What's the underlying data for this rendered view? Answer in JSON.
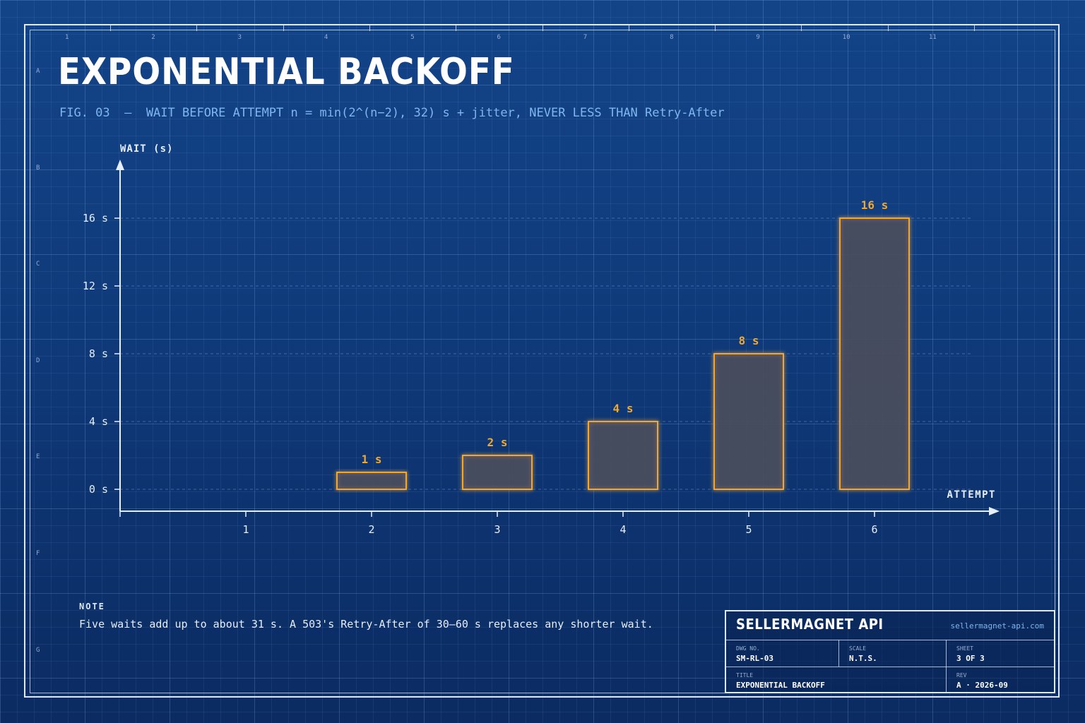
{
  "title": "EXPONENTIAL BACKOFF",
  "subtitle": "FIG. 03  —  WAIT BEFORE ATTEMPT n = min(2^(n−2), 32) s + jitter, NEVER LESS THAN Retry-After",
  "zones": {
    "columns": [
      "1",
      "2",
      "3",
      "4",
      "5",
      "6",
      "7",
      "8",
      "9",
      "10",
      "11"
    ],
    "rows": [
      "A",
      "B",
      "C",
      "D",
      "E",
      "F",
      "G"
    ]
  },
  "colors": {
    "background": "#0f3a7a",
    "bar_stroke": "#f0a830",
    "bar_fill": "#4a4e5e",
    "axis": "#e6eefb",
    "accent_text": "#7fb6ee"
  },
  "chart_data": {
    "type": "bar",
    "xlabel": "ATTEMPT",
    "ylabel": "WAIT (s)",
    "categories": [
      "1",
      "2",
      "3",
      "4",
      "5",
      "6"
    ],
    "values": [
      null,
      1,
      2,
      4,
      8,
      16
    ],
    "data_labels": [
      "",
      "1 s",
      "2 s",
      "4 s",
      "8 s",
      "16 s"
    ],
    "y_ticks": [
      0,
      4,
      8,
      12,
      16
    ],
    "y_tick_labels": [
      "0 s",
      "4 s",
      "8 s",
      "12 s",
      "16 s"
    ],
    "ylim": [
      0,
      18
    ],
    "grid": "horizontal dashed",
    "legend": "none"
  },
  "note": {
    "heading": "NOTE",
    "text": "Five waits add up to about 31 s. A 503's Retry-After of 30–60 s replaces any shorter wait."
  },
  "title_block": {
    "company": "SELLERMAGNET API",
    "website": "sellermagnet-api.com",
    "dwg_no_label": "DWG NO.",
    "dwg_no": "SM-RL-03",
    "scale_label": "SCALE",
    "scale": "N.T.S.",
    "sheet_label": "SHEET",
    "sheet": "3 OF 3",
    "title_label": "TITLE",
    "title": "EXPONENTIAL BACKOFF",
    "rev_label": "REV",
    "rev": "A · 2026-09"
  }
}
